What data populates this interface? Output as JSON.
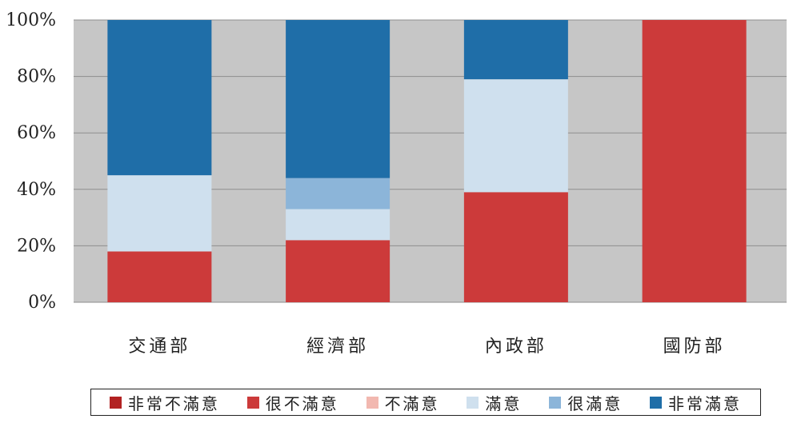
{
  "chart_data": {
    "type": "bar",
    "stacked": true,
    "percent": true,
    "categories": [
      "交通部",
      "經濟部",
      "內政部",
      "國防部"
    ],
    "ylim": [
      0,
      100
    ],
    "yticks": [
      "0%",
      "20%",
      "40%",
      "60%",
      "80%",
      "100%"
    ],
    "grid": true,
    "legend_position": "bottom",
    "series": [
      {
        "name": "非常不滿意",
        "color": "#b22222",
        "values": [
          0,
          0,
          0,
          0
        ]
      },
      {
        "name": "很不滿意",
        "color": "#cc3a3a",
        "values": [
          18,
          22,
          39,
          100
        ]
      },
      {
        "name": "不滿意",
        "color": "#f2b8b0",
        "values": [
          0,
          0,
          0,
          0
        ]
      },
      {
        "name": "滿意",
        "color": "#cfe0ee",
        "values": [
          27,
          11,
          40,
          0
        ]
      },
      {
        "name": "很滿意",
        "color": "#8cb5d9",
        "values": [
          0,
          11,
          0,
          0
        ]
      },
      {
        "name": "非常滿意",
        "color": "#1f6ea8",
        "values": [
          55,
          56,
          21,
          0
        ]
      }
    ]
  }
}
